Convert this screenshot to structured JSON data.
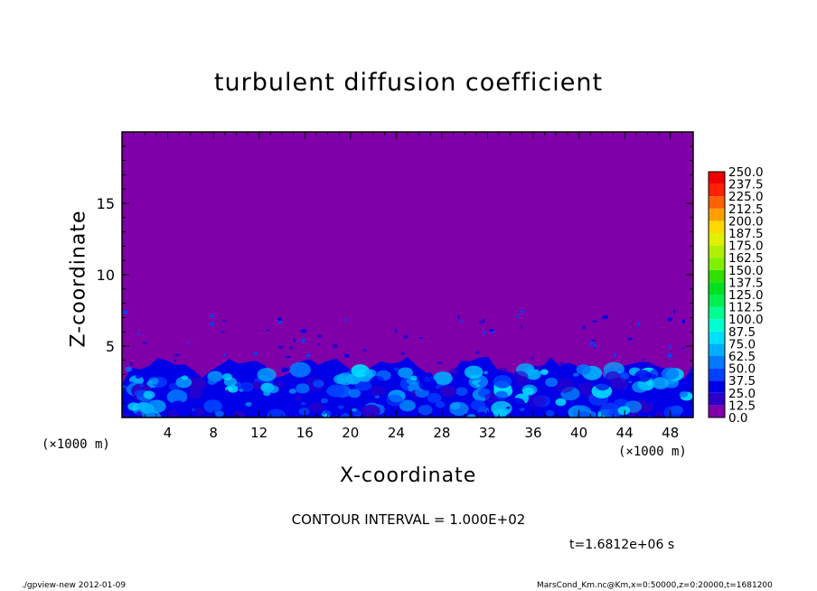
{
  "chart_data": {
    "type": "heatmap",
    "title": "turbulent diffusion coefficient",
    "xlabel": "X-coordinate",
    "ylabel": "Z-coordinate",
    "x_unit": "(×1000 m)",
    "xlim": [
      0,
      50
    ],
    "ylim": [
      0,
      20
    ],
    "x_ticks": [
      4,
      8,
      12,
      16,
      20,
      24,
      28,
      32,
      36,
      40,
      44,
      48
    ],
    "y_ticks": [
      5,
      10,
      15
    ],
    "colorbar_levels": [
      "0.0",
      "12.5",
      "25.0",
      "37.5",
      "50.0",
      "62.5",
      "75.0",
      "87.5",
      "100.0",
      "112.5",
      "125.0",
      "137.5",
      "150.0",
      "162.5",
      "175.0",
      "187.5",
      "200.0",
      "212.5",
      "225.0",
      "237.5",
      "250.0"
    ],
    "colorbar_colors": [
      "#7f00a8",
      "#2b00c8",
      "#0000e8",
      "#0040ff",
      "#0078ff",
      "#00b0ff",
      "#00e0ff",
      "#00ffd0",
      "#00ff90",
      "#00f050",
      "#00e020",
      "#30e000",
      "#80f000",
      "#b0f000",
      "#e0f000",
      "#ffd800",
      "#ffa000",
      "#ff6000",
      "#ff2000",
      "#f00000",
      "#ff7070"
    ],
    "background_color": "#7f00a8",
    "contour_interval": "CONTOUR INTERVAL = 1.000E+02",
    "time": "t=1.6812e+06 s",
    "footer_left": "./gpview-new   2012-01-09",
    "footer_right": "MarsCond_Km.nc@Km,x=0:50000,z=0:20000,t=1681200"
  }
}
